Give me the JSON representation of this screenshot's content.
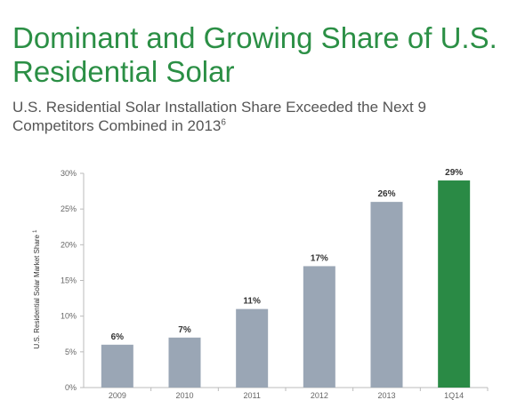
{
  "header": {
    "title": "Dominant and Growing Share of U.S. Residential Solar",
    "subtitle": "U.S. Residential  Solar Installation Share Exceeded the Next 9 Competitors Combined in 2013",
    "subtitle_footnote": "6"
  },
  "chart_data": {
    "type": "bar",
    "categories": [
      "2009",
      "2010",
      "2011",
      "2012",
      "2013",
      "1Q14"
    ],
    "values": [
      6,
      7,
      11,
      17,
      26,
      29
    ],
    "data_labels": [
      "6%",
      "7%",
      "11%",
      "17%",
      "26%",
      "29%"
    ],
    "ylabel": "U.S. Residential  Solar Market Share",
    "ylabel_footnote": "1",
    "ylim": [
      0,
      30
    ],
    "yticks": [
      0,
      5,
      10,
      15,
      20,
      25,
      30
    ],
    "ytick_labels": [
      "0%",
      "5%",
      "10%",
      "15%",
      "20%",
      "25%",
      "30%"
    ],
    "grid": false,
    "colors": {
      "default": "#9aa6b5",
      "highlight": "#2a8a45",
      "highlight_category": "1Q14"
    }
  }
}
